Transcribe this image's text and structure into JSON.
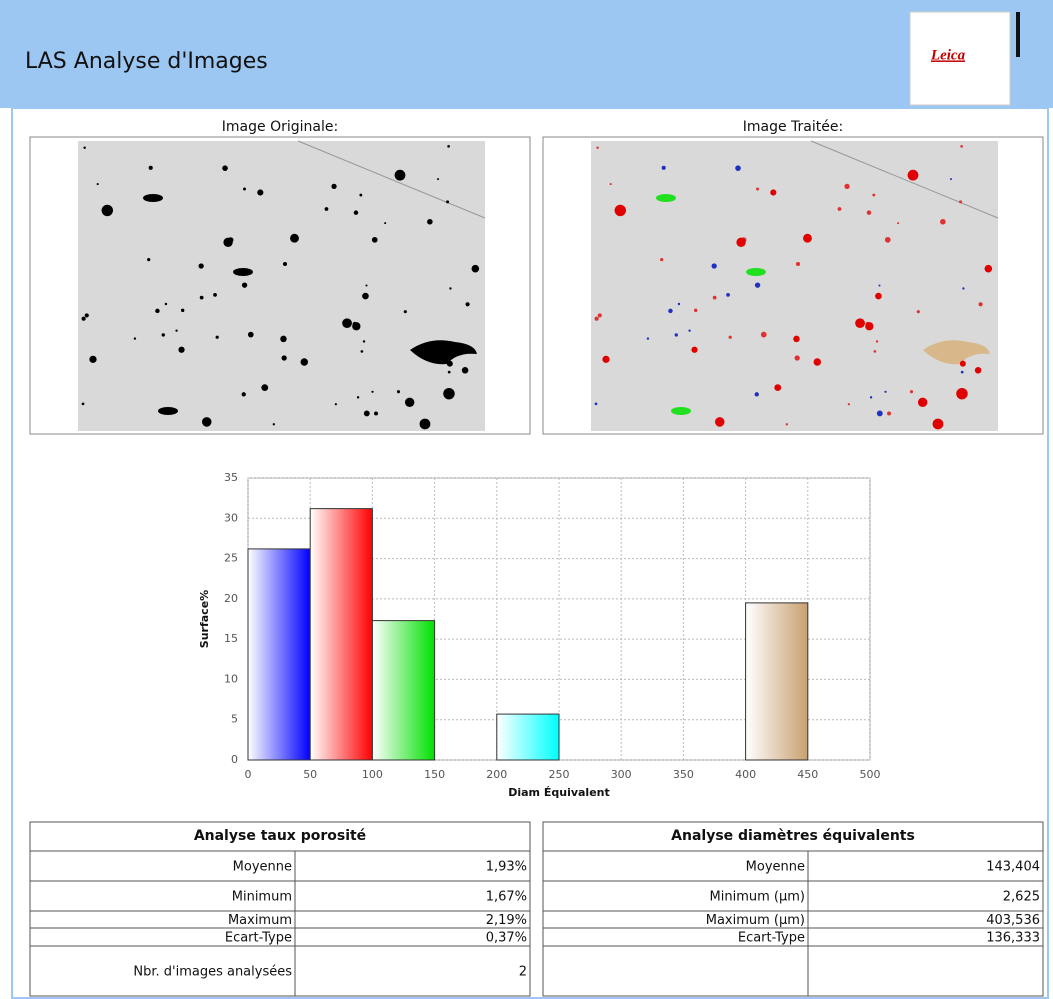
{
  "header": {
    "title": "LAS Analyse d'Images",
    "logo": "Leica"
  },
  "images": [
    {
      "label": "Image Originale:"
    },
    {
      "label": "Image Traitée:"
    }
  ],
  "chart_data": {
    "type": "histogram",
    "ylabel": "Surface%",
    "xlabel": "Diam Équivalent",
    "bars": [
      {
        "start": 0,
        "end": 50,
        "value": 26.2,
        "color": "#0000ff"
      },
      {
        "start": 50,
        "end": 100,
        "value": 31.2,
        "color": "#ff0000"
      },
      {
        "start": 100,
        "end": 150,
        "value": 17.3,
        "color": "#00e000"
      },
      {
        "start": 200,
        "end": 250,
        "value": 5.7,
        "color": "#00ffff"
      },
      {
        "start": 400,
        "end": 450,
        "value": 19.5,
        "color": "#c8a070"
      }
    ],
    "xlim": [
      0,
      500
    ],
    "ylim": [
      0,
      35
    ],
    "xticks": [
      0,
      50,
      100,
      150,
      200,
      250,
      300,
      350,
      400,
      450,
      500
    ],
    "yticks": [
      0,
      5,
      10,
      15,
      20,
      25,
      30,
      35
    ],
    "grid": true
  },
  "tables": [
    {
      "title": "Analyse taux porosité",
      "rows": [
        [
          "Moyenne",
          "1,93%"
        ],
        [
          "Minimum",
          "1,67%"
        ],
        [
          "Maximum",
          "2,19%"
        ],
        [
          "Ecart-Type",
          "0,37%"
        ],
        [
          "Nbr. d'images analysées",
          "2"
        ]
      ]
    },
    {
      "title": "Analyse diamètres équivalents",
      "rows": [
        [
          "Moyenne",
          "143,404"
        ],
        [
          "Minimum (µm)",
          "2,625"
        ],
        [
          "Maximum (µm)",
          "403,536"
        ],
        [
          "Ecart-Type",
          "136,333"
        ]
      ]
    }
  ]
}
